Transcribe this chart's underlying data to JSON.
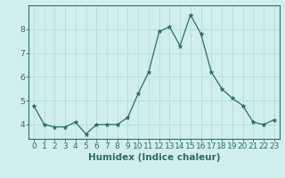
{
  "x": [
    0,
    1,
    2,
    3,
    4,
    5,
    6,
    7,
    8,
    9,
    10,
    11,
    12,
    13,
    14,
    15,
    16,
    17,
    18,
    19,
    20,
    21,
    22,
    23
  ],
  "y": [
    4.8,
    4.0,
    3.9,
    3.9,
    4.1,
    3.6,
    4.0,
    4.0,
    4.0,
    4.3,
    5.3,
    6.2,
    7.9,
    8.1,
    7.3,
    8.6,
    7.8,
    6.2,
    5.5,
    5.1,
    4.8,
    4.1,
    4.0,
    4.2
  ],
  "xlabel": "Humidex (Indice chaleur)",
  "line_color": "#2d6b6b",
  "marker": "*",
  "marker_size": 3.5,
  "bg_color": "#d1eeee",
  "grid_color": "#b8dada",
  "ylim": [
    3.4,
    9.0
  ],
  "xlim": [
    -0.5,
    23.5
  ],
  "yticks": [
    4,
    5,
    6,
    7,
    8
  ],
  "xticks": [
    0,
    1,
    2,
    3,
    4,
    5,
    6,
    7,
    8,
    9,
    10,
    11,
    12,
    13,
    14,
    15,
    16,
    17,
    18,
    19,
    20,
    21,
    22,
    23
  ],
  "tick_fontsize": 6.5,
  "label_fontsize": 7.5
}
